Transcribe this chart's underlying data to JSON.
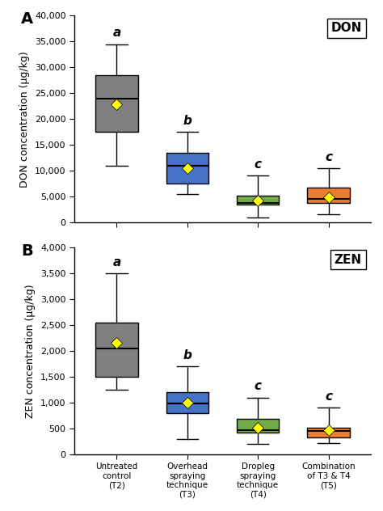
{
  "don": {
    "title": "DON",
    "ylabel": "DON concentration (μg/kg)",
    "ylim": [
      0,
      40000
    ],
    "yticks": [
      0,
      5000,
      10000,
      15000,
      20000,
      25000,
      30000,
      35000,
      40000
    ],
    "boxes": [
      {
        "whislo": 11000,
        "q1": 17500,
        "med": 24000,
        "q3": 28500,
        "whishi": 34500,
        "mean": 22800,
        "color": "#808080",
        "label": "a"
      },
      {
        "whislo": 5500,
        "q1": 7500,
        "med": 11000,
        "q3": 13500,
        "whishi": 17500,
        "mean": 10500,
        "color": "#4472C4",
        "label": "b"
      },
      {
        "whislo": 1000,
        "q1": 3500,
        "med": 3800,
        "q3": 5200,
        "whishi": 9000,
        "mean": 4200,
        "color": "#70AD47",
        "label": "c"
      },
      {
        "whislo": 1500,
        "q1": 3800,
        "med": 4500,
        "q3": 6800,
        "whishi": 10500,
        "mean": 4800,
        "color": "#ED7D31",
        "label": "c"
      }
    ]
  },
  "zen": {
    "title": "ZEN",
    "ylabel": "ZEN concentration (μg/kg)",
    "ylim": [
      0,
      4000
    ],
    "yticks": [
      0,
      500,
      1000,
      1500,
      2000,
      2500,
      3000,
      3500,
      4000
    ],
    "boxes": [
      {
        "whislo": 1250,
        "q1": 1500,
        "med": 2050,
        "q3": 2550,
        "whishi": 3500,
        "mean": 2150,
        "color": "#808080",
        "label": "a"
      },
      {
        "whislo": 300,
        "q1": 800,
        "med": 980,
        "q3": 1200,
        "whishi": 1700,
        "mean": 1000,
        "color": "#4472C4",
        "label": "b"
      },
      {
        "whislo": 200,
        "q1": 420,
        "med": 470,
        "q3": 680,
        "whishi": 1100,
        "mean": 520,
        "color": "#70AD47",
        "label": "c"
      },
      {
        "whislo": 220,
        "q1": 330,
        "med": 450,
        "q3": 520,
        "whishi": 900,
        "mean": 460,
        "color": "#ED7D31",
        "label": "c"
      }
    ]
  },
  "xticklabels": [
    "Untreated\ncontrol\n(T2)",
    "Overhead\nspraying\ntechnique\n(T3)",
    "Dropleg\nspraying\ntechnique\n(T4)",
    "Combination\nof T3 & T4\n(T5)"
  ],
  "mean_marker": {
    "marker": "D",
    "color": "yellow",
    "edgecolor": "black",
    "size": 7,
    "linewidth": 0.5
  },
  "label_letters_fontsize": 11,
  "panel_label_fontsize": 14,
  "ylabel_fontsize": 9,
  "tick_fontsize": 8,
  "xtick_fontsize": 7.5
}
